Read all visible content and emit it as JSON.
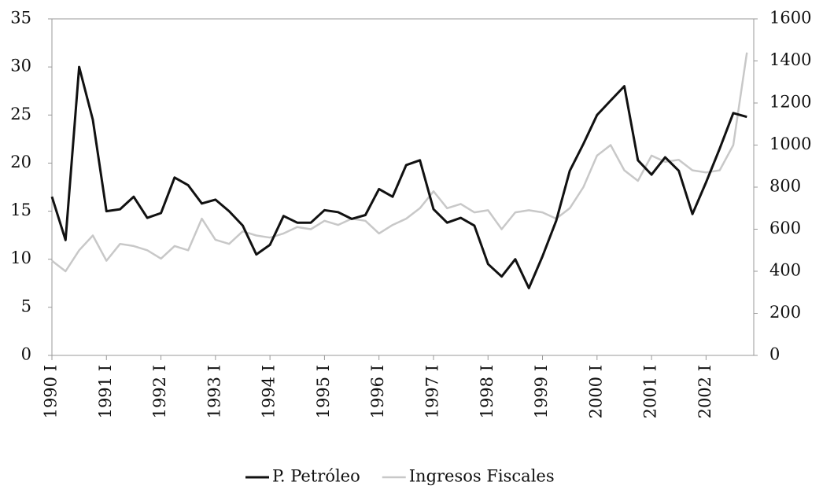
{
  "chart_data": {
    "type": "line",
    "categories": [
      "1990 I",
      null,
      null,
      null,
      "1991 I",
      null,
      null,
      null,
      "1992 I",
      null,
      null,
      null,
      "1993 I",
      null,
      null,
      null,
      "1994 I",
      null,
      null,
      null,
      "1995 I",
      null,
      null,
      null,
      "1996 I",
      null,
      null,
      null,
      "1997 I",
      null,
      null,
      null,
      "1998 I",
      null,
      null,
      null,
      "1999 I",
      null,
      null,
      null,
      "2000 I",
      null,
      null,
      null,
      "2001 I",
      null,
      null,
      null,
      "2002 I",
      null,
      null,
      null
    ],
    "series": [
      {
        "name": "P. Petróleo",
        "color": "#111111",
        "values": [
          16.5,
          12,
          30,
          24.5,
          15,
          15.2,
          16.5,
          14.3,
          14.8,
          18.5,
          17.7,
          15.8,
          16.2,
          15,
          13.5,
          10.5,
          11.5,
          14.5,
          13.8,
          13.8,
          15.1,
          14.9,
          14.2,
          14.6,
          17.3,
          16.5,
          19.8,
          20.3,
          15.2,
          13.8,
          14.3,
          13.5,
          9.5,
          8.2,
          10,
          7,
          10.3,
          14,
          19.2,
          22,
          25,
          26.5,
          28,
          20.3,
          18.8,
          20.6,
          19.2,
          14.7,
          18,
          21.5,
          25.2,
          24.8
        ]
      },
      {
        "name": "Ingresos Fiscales",
        "color": "#c8c8c8",
        "axis": "y2",
        "values": [
          450,
          400,
          500,
          570,
          450,
          530,
          520,
          500,
          460,
          520,
          500,
          650,
          550,
          530,
          590,
          570,
          560,
          580,
          610,
          600,
          640,
          620,
          650,
          640,
          580,
          620,
          650,
          700,
          780,
          700,
          720,
          680,
          690,
          600,
          680,
          690,
          680,
          650,
          700,
          800,
          950,
          1000,
          880,
          830,
          950,
          920,
          930,
          880,
          870,
          880,
          1000,
          1440
        ]
      }
    ],
    "ylim": [
      0,
      35
    ],
    "yticks": [
      0,
      5,
      10,
      15,
      20,
      25,
      30,
      35
    ],
    "y2lim": [
      0,
      1600
    ],
    "y2ticks": [
      0,
      200,
      400,
      600,
      800,
      1000,
      1200,
      1400,
      1600
    ],
    "grid": false,
    "legend": "bottom"
  }
}
